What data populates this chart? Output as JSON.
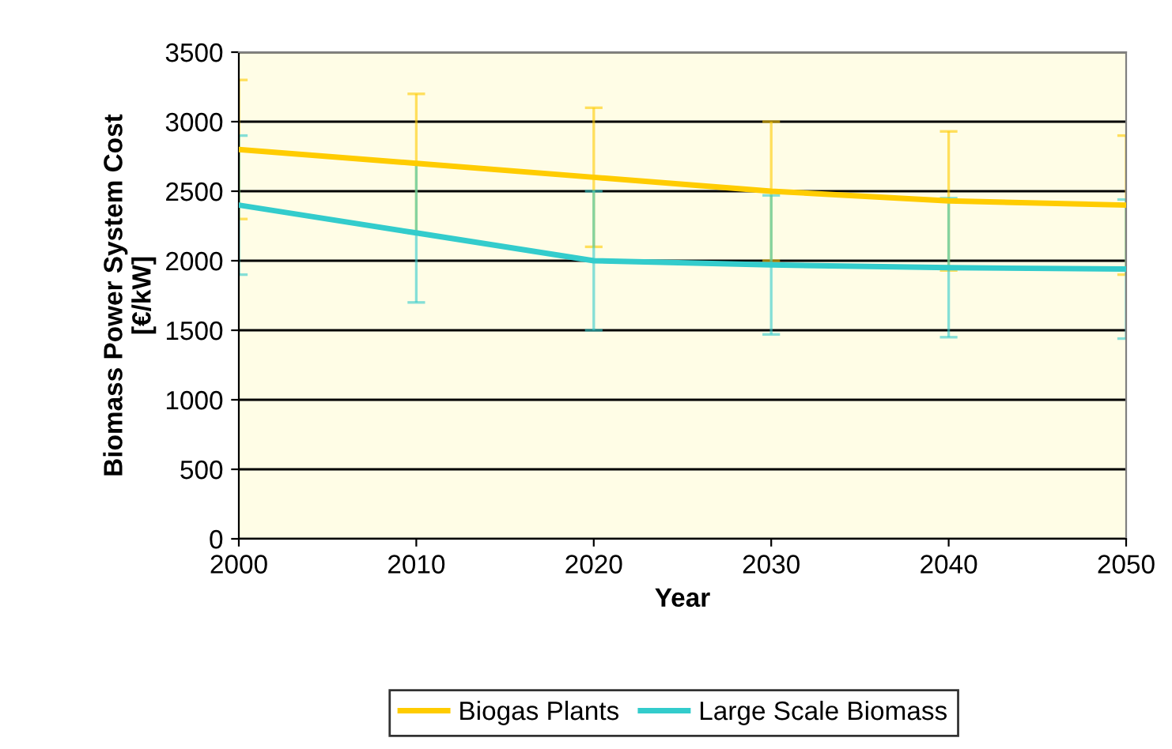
{
  "chart_data": {
    "type": "line",
    "xlabel": "Year",
    "ylabel": "Biomass Power System Cost\n[€/kW]",
    "x": [
      2000,
      2010,
      2020,
      2030,
      2040,
      2050
    ],
    "series": [
      {
        "name": "Biogas Plants",
        "color": "#ffcc00",
        "values": [
          2800,
          2700,
          2600,
          2500,
          2430,
          2400
        ],
        "errors": [
          500,
          500,
          500,
          500,
          500,
          500
        ]
      },
      {
        "name": "Large Scale Biomass",
        "color": "#33cccc",
        "values": [
          2400,
          2200,
          2000,
          1970,
          1950,
          1940
        ],
        "errors": [
          500,
          500,
          500,
          500,
          500,
          500
        ]
      }
    ],
    "xlim": [
      2000,
      2050
    ],
    "xticks": [
      2000,
      2010,
      2020,
      2030,
      2040,
      2050
    ],
    "ylim": [
      0,
      3500
    ],
    "yticks": [
      0,
      500,
      1000,
      1500,
      2000,
      2500,
      3000,
      3500
    ],
    "grid": "y",
    "legend": "bottom",
    "marker": "none",
    "line_style": "solid"
  }
}
